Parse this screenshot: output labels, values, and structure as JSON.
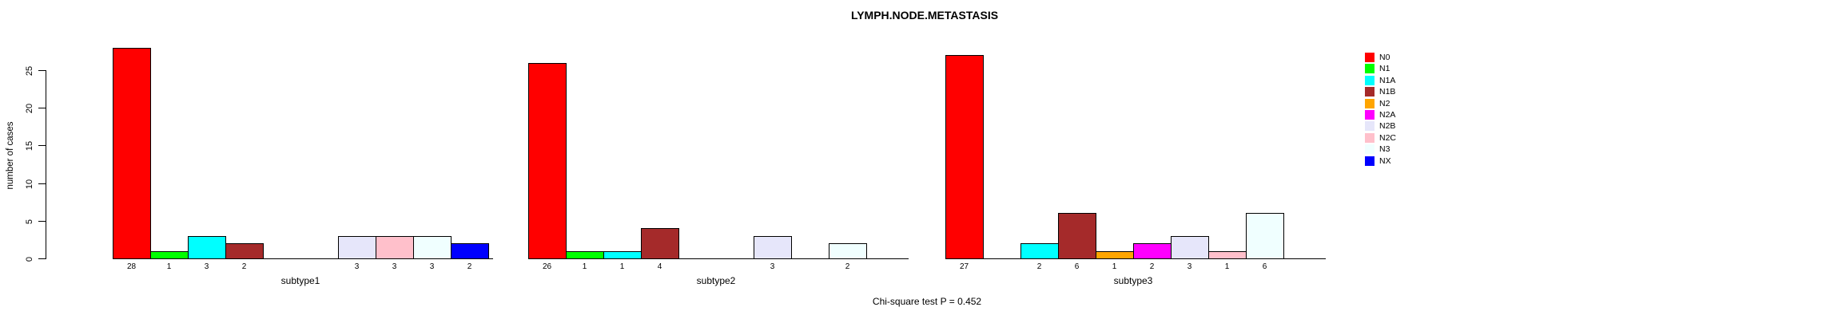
{
  "chart_data": {
    "type": "bar",
    "title": "LYMPH.NODE.METASTASIS",
    "ylabel": "number of cases",
    "caption": "Chi-square test P = 0.452",
    "yticks": [
      0,
      5,
      10,
      15,
      20,
      25
    ],
    "ylim": [
      0,
      28
    ],
    "grid": false,
    "legend_position": "right",
    "categories": [
      "N0",
      "N1",
      "N1A",
      "N1B",
      "N2",
      "N2A",
      "N2B",
      "N2C",
      "N3",
      "NX"
    ],
    "colors": [
      "#FF0000",
      "#00FF00",
      "#00FFFF",
      "#A52A2A",
      "#FFA500",
      "#FF00FF",
      "#E6E6FA",
      "#FFC0CB",
      "#F0FFFF",
      "#0000FF"
    ],
    "panels": [
      {
        "label": "subtype1",
        "values": [
          28,
          1,
          3,
          2,
          0,
          0,
          3,
          3,
          3,
          2
        ]
      },
      {
        "label": "subtype2",
        "values": [
          26,
          1,
          1,
          4,
          0,
          0,
          3,
          0,
          2,
          0
        ]
      },
      {
        "label": "subtype3",
        "values": [
          27,
          0,
          2,
          6,
          1,
          2,
          3,
          1,
          6,
          0
        ]
      }
    ]
  }
}
